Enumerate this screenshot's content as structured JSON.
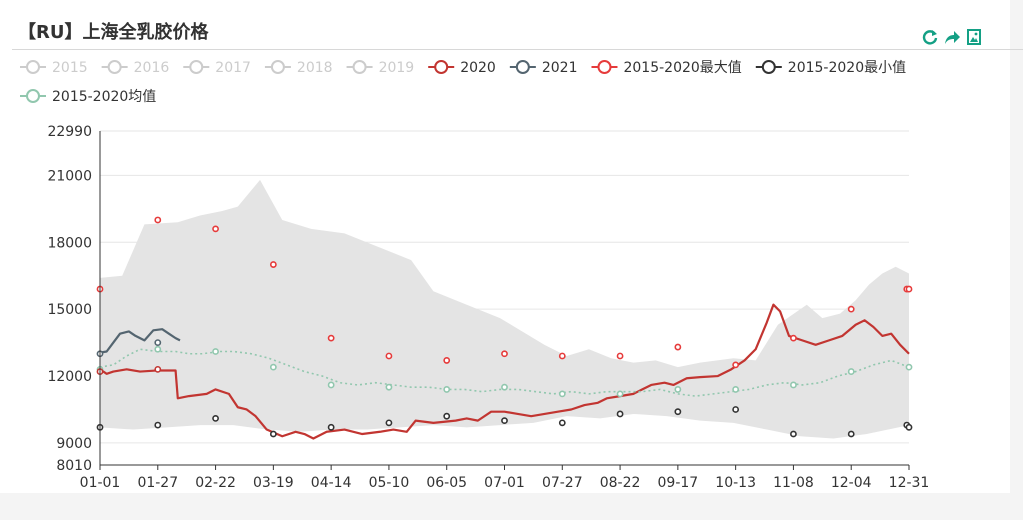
{
  "title": "【RU】上海全乳胶价格",
  "toolbox": [
    {
      "name": "refresh-icon"
    },
    {
      "name": "share-icon"
    },
    {
      "name": "save-image-icon"
    }
  ],
  "colors": {
    "accent": "#14a085",
    "series_2020": "#c23531",
    "series_2021": "#546570",
    "max": "#e63b3b",
    "min": "#333333",
    "avg": "#91c7ae",
    "band": "#e4e4e4",
    "inactive": "#cccccc"
  },
  "chart_data": {
    "type": "line",
    "title": "【RU】上海全乳胶价格",
    "xlabel": "",
    "ylabel": "",
    "ylim": [
      8010,
      22990
    ],
    "y_ticks": [
      8010,
      9000,
      12000,
      15000,
      18000,
      21000,
      22990
    ],
    "x_ticks": [
      "01-01",
      "01-27",
      "02-22",
      "03-19",
      "04-14",
      "05-10",
      "06-05",
      "07-01",
      "07-27",
      "08-22",
      "09-17",
      "10-13",
      "11-08",
      "12-04",
      "12-31"
    ],
    "grid": true,
    "legend_position": "top",
    "legend": [
      {
        "name": "2015",
        "active": false
      },
      {
        "name": "2016",
        "active": false
      },
      {
        "name": "2017",
        "active": false
      },
      {
        "name": "2018",
        "active": false
      },
      {
        "name": "2019",
        "active": false
      },
      {
        "name": "2020",
        "active": true
      },
      {
        "name": "2021",
        "active": true
      },
      {
        "name": "2015-2020最大值",
        "active": true
      },
      {
        "name": "2015-2020最小值",
        "active": true
      },
      {
        "name": "2015-2020均值",
        "active": true
      }
    ],
    "band": {
      "upper": [
        [
          0,
          16400
        ],
        [
          10,
          16500
        ],
        [
          20,
          18800
        ],
        [
          35,
          18900
        ],
        [
          45,
          19200
        ],
        [
          55,
          19400
        ],
        [
          62,
          19600
        ],
        [
          72,
          20800
        ],
        [
          82,
          19000
        ],
        [
          95,
          18600
        ],
        [
          110,
          18400
        ],
        [
          125,
          17800
        ],
        [
          140,
          17200
        ],
        [
          150,
          15800
        ],
        [
          165,
          15200
        ],
        [
          180,
          14600
        ],
        [
          190,
          14000
        ],
        [
          200,
          13400
        ],
        [
          210,
          12900
        ],
        [
          220,
          13200
        ],
        [
          230,
          12800
        ],
        [
          240,
          12600
        ],
        [
          250,
          12700
        ],
        [
          260,
          12400
        ],
        [
          270,
          12600
        ],
        [
          285,
          12800
        ],
        [
          295,
          12700
        ],
        [
          305,
          14300
        ],
        [
          318,
          15200
        ],
        [
          325,
          14600
        ],
        [
          333,
          14800
        ],
        [
          340,
          15400
        ],
        [
          346,
          16100
        ],
        [
          352,
          16600
        ],
        [
          358,
          16900
        ],
        [
          364,
          16600
        ]
      ],
      "lower": [
        [
          0,
          9700
        ],
        [
          15,
          9600
        ],
        [
          30,
          9700
        ],
        [
          45,
          9800
        ],
        [
          60,
          9800
        ],
        [
          75,
          9600
        ],
        [
          90,
          9500
        ],
        [
          105,
          9600
        ],
        [
          120,
          9600
        ],
        [
          135,
          9700
        ],
        [
          150,
          9800
        ],
        [
          165,
          9700
        ],
        [
          180,
          9800
        ],
        [
          195,
          9900
        ],
        [
          210,
          10200
        ],
        [
          225,
          10100
        ],
        [
          240,
          10300
        ],
        [
          255,
          10200
        ],
        [
          270,
          10000
        ],
        [
          285,
          9900
        ],
        [
          300,
          9600
        ],
        [
          315,
          9300
        ],
        [
          330,
          9200
        ],
        [
          345,
          9400
        ],
        [
          364,
          9800
        ]
      ]
    },
    "series": [
      {
        "name": "2020",
        "color_key": "series_2020",
        "points": [
          [
            0,
            12300
          ],
          [
            3,
            12100
          ],
          [
            6,
            12200
          ],
          [
            12,
            12300
          ],
          [
            18,
            12200
          ],
          [
            26,
            12250
          ],
          [
            34,
            12250
          ],
          [
            35,
            11000
          ],
          [
            40,
            11100
          ],
          [
            48,
            11200
          ],
          [
            52,
            11400
          ],
          [
            58,
            11200
          ],
          [
            62,
            10600
          ],
          [
            66,
            10500
          ],
          [
            70,
            10200
          ],
          [
            75,
            9600
          ],
          [
            82,
            9300
          ],
          [
            88,
            9500
          ],
          [
            92,
            9400
          ],
          [
            96,
            9200
          ],
          [
            102,
            9500
          ],
          [
            110,
            9600
          ],
          [
            118,
            9400
          ],
          [
            126,
            9500
          ],
          [
            132,
            9600
          ],
          [
            138,
            9500
          ],
          [
            142,
            10000
          ],
          [
            150,
            9900
          ],
          [
            160,
            10000
          ],
          [
            165,
            10100
          ],
          [
            170,
            10000
          ],
          [
            176,
            10400
          ],
          [
            182,
            10400
          ],
          [
            188,
            10300
          ],
          [
            194,
            10200
          ],
          [
            200,
            10300
          ],
          [
            206,
            10400
          ],
          [
            212,
            10500
          ],
          [
            218,
            10700
          ],
          [
            224,
            10800
          ],
          [
            228,
            11000
          ],
          [
            234,
            11100
          ],
          [
            240,
            11200
          ],
          [
            244,
            11400
          ],
          [
            248,
            11600
          ],
          [
            254,
            11700
          ],
          [
            258,
            11600
          ],
          [
            264,
            11900
          ],
          [
            270,
            11950
          ],
          [
            278,
            12000
          ],
          [
            284,
            12300
          ],
          [
            290,
            12700
          ],
          [
            295,
            13200
          ],
          [
            300,
            14400
          ],
          [
            303,
            15200
          ],
          [
            306,
            14900
          ],
          [
            310,
            13800
          ],
          [
            316,
            13600
          ],
          [
            322,
            13400
          ],
          [
            328,
            13600
          ],
          [
            334,
            13800
          ],
          [
            340,
            14300
          ],
          [
            344,
            14500
          ],
          [
            348,
            14200
          ],
          [
            352,
            13800
          ],
          [
            356,
            13900
          ],
          [
            360,
            13400
          ],
          [
            364,
            13000
          ]
        ]
      },
      {
        "name": "2021",
        "color_key": "series_2021",
        "points": [
          [
            0,
            13050
          ],
          [
            3,
            13100
          ],
          [
            6,
            13500
          ],
          [
            9,
            13900
          ],
          [
            13,
            14000
          ],
          [
            16,
            13800
          ],
          [
            20,
            13600
          ],
          [
            24,
            14050
          ],
          [
            28,
            14100
          ],
          [
            31,
            13900
          ],
          [
            34,
            13700
          ],
          [
            36,
            13600
          ]
        ]
      },
      {
        "name": "2015-2020均值",
        "color_key": "avg",
        "dotted": true,
        "points": [
          [
            0,
            12400
          ],
          [
            6,
            12500
          ],
          [
            12,
            12900
          ],
          [
            18,
            13200
          ],
          [
            26,
            13100
          ],
          [
            34,
            13100
          ],
          [
            40,
            13000
          ],
          [
            46,
            13000
          ],
          [
            54,
            13100
          ],
          [
            60,
            13100
          ],
          [
            68,
            13000
          ],
          [
            76,
            12800
          ],
          [
            84,
            12500
          ],
          [
            92,
            12200
          ],
          [
            100,
            12000
          ],
          [
            108,
            11700
          ],
          [
            116,
            11600
          ],
          [
            124,
            11700
          ],
          [
            132,
            11600
          ],
          [
            140,
            11500
          ],
          [
            148,
            11500
          ],
          [
            156,
            11400
          ],
          [
            164,
            11400
          ],
          [
            172,
            11300
          ],
          [
            180,
            11400
          ],
          [
            188,
            11400
          ],
          [
            196,
            11300
          ],
          [
            204,
            11200
          ],
          [
            212,
            11300
          ],
          [
            220,
            11200
          ],
          [
            228,
            11300
          ],
          [
            236,
            11300
          ],
          [
            244,
            11300
          ],
          [
            252,
            11400
          ],
          [
            260,
            11200
          ],
          [
            268,
            11100
          ],
          [
            276,
            11200
          ],
          [
            284,
            11300
          ],
          [
            292,
            11400
          ],
          [
            300,
            11600
          ],
          [
            308,
            11700
          ],
          [
            316,
            11600
          ],
          [
            324,
            11700
          ],
          [
            332,
            12000
          ],
          [
            340,
            12200
          ],
          [
            348,
            12500
          ],
          [
            356,
            12700
          ],
          [
            364,
            12400
          ]
        ]
      }
    ],
    "markers": {
      "max": [
        [
          0,
          15900
        ],
        [
          26,
          19000
        ],
        [
          52,
          18600
        ],
        [
          78,
          17000
        ],
        [
          104,
          13700
        ],
        [
          130,
          12900
        ],
        [
          156,
          12700
        ],
        [
          182,
          13000
        ],
        [
          208,
          12900
        ],
        [
          234,
          12900
        ],
        [
          260,
          13300
        ],
        [
          286,
          12500
        ],
        [
          312,
          13700
        ],
        [
          338,
          15000
        ],
        [
          363,
          15900
        ],
        [
          364,
          15900
        ]
      ],
      "min": [
        [
          0,
          9700
        ],
        [
          26,
          9800
        ],
        [
          52,
          10100
        ],
        [
          78,
          9400
        ],
        [
          104,
          9700
        ],
        [
          130,
          9900
        ],
        [
          156,
          10200
        ],
        [
          182,
          10000
        ],
        [
          208,
          9900
        ],
        [
          234,
          10300
        ],
        [
          260,
          10400
        ],
        [
          286,
          10500
        ],
        [
          312,
          9400
        ],
        [
          338,
          9400
        ],
        [
          363,
          9800
        ],
        [
          364,
          9700
        ]
      ],
      "avg": [
        [
          0,
          12300
        ],
        [
          26,
          13200
        ],
        [
          52,
          13100
        ],
        [
          78,
          12400
        ],
        [
          104,
          11600
        ],
        [
          130,
          11500
        ],
        [
          156,
          11400
        ],
        [
          182,
          11500
        ],
        [
          208,
          11200
        ],
        [
          234,
          11200
        ],
        [
          260,
          11400
        ],
        [
          286,
          11400
        ],
        [
          312,
          11600
        ],
        [
          338,
          12200
        ],
        [
          364,
          12400
        ]
      ],
      "s2020": [
        [
          0,
          12200
        ],
        [
          26,
          12300
        ]
      ],
      "s2021": [
        [
          0,
          13000
        ],
        [
          26,
          13500
        ]
      ]
    }
  }
}
